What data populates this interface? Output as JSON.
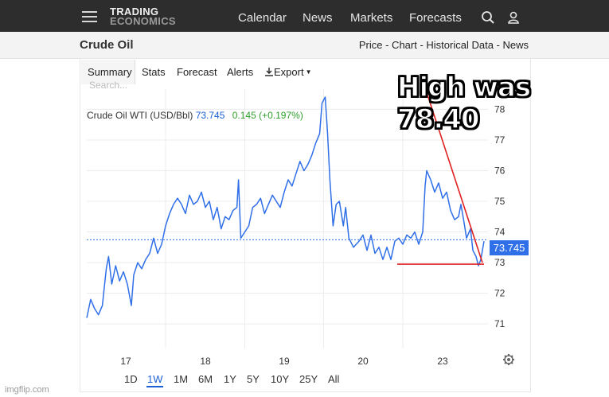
{
  "nav": {
    "logo_line1": "TRADING",
    "logo_line2": "ECONOMICS",
    "links": [
      "Calendar",
      "News",
      "Markets",
      "Forecasts"
    ],
    "icons": [
      "menu-icon",
      "search-icon",
      "user-icon"
    ]
  },
  "title_bar": {
    "title": "Crude Oil",
    "links": "Price - Chart - Historical Data - News"
  },
  "tabs": {
    "summary": "Summary",
    "stats": "Stats",
    "forecast": "Forecast",
    "alerts": "Alerts",
    "export": "Export"
  },
  "search_placeholder": "Search...",
  "series_header": {
    "name": "Crude Oil WTI (USD/Bbl)",
    "price": "73.745",
    "change": "0.145 (+0.197%)"
  },
  "range_buttons": [
    "1D",
    "1W",
    "1M",
    "6M",
    "1Y",
    "5Y",
    "10Y",
    "25Y",
    "All"
  ],
  "active_range": "1W",
  "annotation": "High was 78.40",
  "watermark": "imgflip.com",
  "colors": {
    "line": "#2f6fe8",
    "annotation_lines": "#e02020",
    "price_tag": "#2f6fe8",
    "positive_change": "#2e9e2e"
  },
  "chart_data": {
    "type": "line",
    "title": "",
    "xlabel": "",
    "ylabel": "",
    "x_ticks": [
      "17",
      "18",
      "19",
      "20",
      "23"
    ],
    "y_ticks": [
      71,
      72,
      73,
      74,
      75,
      76,
      77,
      78
    ],
    "ylim": [
      70.2,
      78.4
    ],
    "grid": true,
    "last_price": 73.745,
    "last_price_label": "73.745",
    "series": [
      {
        "points": [
          [
            16.5,
            71.2
          ],
          [
            16.55,
            71.8
          ],
          [
            16.6,
            71.5
          ],
          [
            16.65,
            71.3
          ],
          [
            16.7,
            71.6
          ],
          [
            16.75,
            72.8
          ],
          [
            16.78,
            73.2
          ],
          [
            16.82,
            72.3
          ],
          [
            16.87,
            72.9
          ],
          [
            16.92,
            72.4
          ],
          [
            16.97,
            72.7
          ],
          [
            17.02,
            72.3
          ],
          [
            17.07,
            71.6
          ],
          [
            17.1,
            72.6
          ],
          [
            17.15,
            73.0
          ],
          [
            17.2,
            72.8
          ],
          [
            17.25,
            73.1
          ],
          [
            17.3,
            73.3
          ],
          [
            17.35,
            73.8
          ],
          [
            17.4,
            73.3
          ],
          [
            17.45,
            73.6
          ],
          [
            17.5,
            74.2
          ],
          [
            17.55,
            74.6
          ],
          [
            17.6,
            74.9
          ],
          [
            17.65,
            75.1
          ],
          [
            17.7,
            74.9
          ],
          [
            17.75,
            74.6
          ],
          [
            17.8,
            75.2
          ],
          [
            17.85,
            74.9
          ],
          [
            17.9,
            75.0
          ],
          [
            17.95,
            75.3
          ],
          [
            18.0,
            74.8
          ],
          [
            18.05,
            75.0
          ],
          [
            18.1,
            74.4
          ],
          [
            18.15,
            74.8
          ],
          [
            18.2,
            74.1
          ],
          [
            18.25,
            74.5
          ],
          [
            18.3,
            74.4
          ],
          [
            18.35,
            74.7
          ],
          [
            18.4,
            74.8
          ],
          [
            18.42,
            75.7
          ],
          [
            18.45,
            73.8
          ],
          [
            18.5,
            74.0
          ],
          [
            18.55,
            74.2
          ],
          [
            18.6,
            74.8
          ],
          [
            18.65,
            74.9
          ],
          [
            18.7,
            75.1
          ],
          [
            18.75,
            74.6
          ],
          [
            18.8,
            74.9
          ],
          [
            18.85,
            75.2
          ],
          [
            18.9,
            75.0
          ],
          [
            18.95,
            74.8
          ],
          [
            19.0,
            75.3
          ],
          [
            19.05,
            75.7
          ],
          [
            19.1,
            75.5
          ],
          [
            19.15,
            75.9
          ],
          [
            19.2,
            76.3
          ],
          [
            19.25,
            76.0
          ],
          [
            19.3,
            76.2
          ],
          [
            19.35,
            76.5
          ],
          [
            19.4,
            76.9
          ],
          [
            19.45,
            77.2
          ],
          [
            19.48,
            78.2
          ],
          [
            19.52,
            78.4
          ],
          [
            19.55,
            77.2
          ],
          [
            19.58,
            75.7
          ],
          [
            19.62,
            74.2
          ],
          [
            19.66,
            74.9
          ],
          [
            19.7,
            75.0
          ],
          [
            19.75,
            74.2
          ],
          [
            19.78,
            74.8
          ],
          [
            19.82,
            73.8
          ],
          [
            19.88,
            73.5
          ],
          [
            19.95,
            73.7
          ],
          [
            20.0,
            73.9
          ],
          [
            20.05,
            73.4
          ],
          [
            20.1,
            73.9
          ],
          [
            20.15,
            73.3
          ],
          [
            20.2,
            73.5
          ],
          [
            20.25,
            73.1
          ],
          [
            20.3,
            73.5
          ],
          [
            20.35,
            73.1
          ],
          [
            20.4,
            73.7
          ],
          [
            20.45,
            73.8
          ],
          [
            20.5,
            73.6
          ],
          [
            20.55,
            73.9
          ],
          [
            20.6,
            73.8
          ],
          [
            20.65,
            74.0
          ],
          [
            20.7,
            73.6
          ],
          [
            20.75,
            74.0
          ],
          [
            20.78,
            75.5
          ],
          [
            20.8,
            76.0
          ],
          [
            20.85,
            75.7
          ],
          [
            20.9,
            75.3
          ],
          [
            20.95,
            75.6
          ],
          [
            21.0,
            75.1
          ],
          [
            21.05,
            75.3
          ],
          [
            21.1,
            74.7
          ],
          [
            21.15,
            74.4
          ],
          [
            21.2,
            74.5
          ],
          [
            21.23,
            74.9
          ],
          [
            21.27,
            74.3
          ],
          [
            21.3,
            73.8
          ],
          [
            21.35,
            74.1
          ],
          [
            21.38,
            73.4
          ],
          [
            21.42,
            73.2
          ],
          [
            21.45,
            72.9
          ],
          [
            21.48,
            73.1
          ],
          [
            21.52,
            73.7
          ]
        ]
      }
    ],
    "annotations": {
      "high_label": "High was 78.40",
      "low_level": 72.95,
      "low_line_x": [
        21.43,
        21.52
      ],
      "falling_line": [
        [
          20.8,
          78.55
        ],
        [
          21.5,
          73.0
        ]
      ]
    }
  }
}
